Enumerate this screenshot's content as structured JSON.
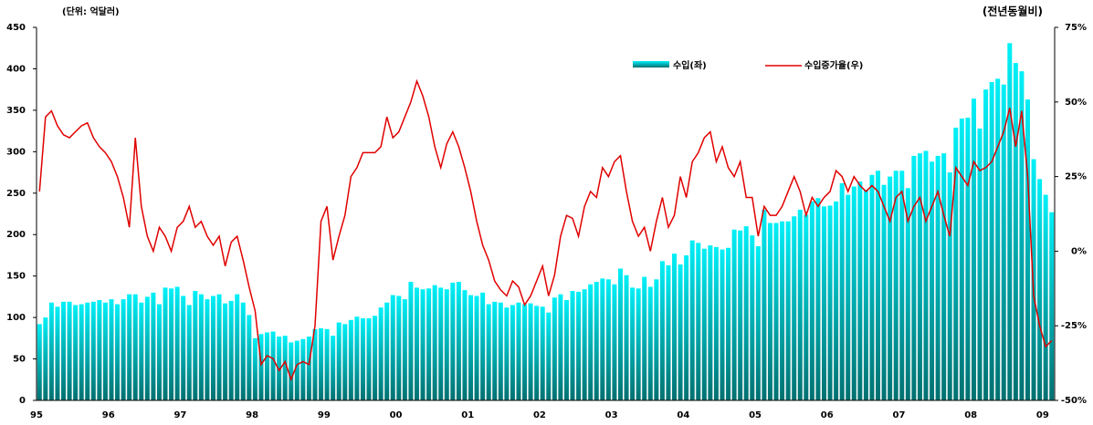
{
  "chart_data": {
    "type": "bar_line",
    "unit_label": "(단위: 억달러)",
    "y2_label": "(전년동월비)",
    "categories": [
      "95",
      null,
      null,
      null,
      null,
      null,
      null,
      null,
      null,
      null,
      null,
      null,
      "96",
      null,
      null,
      null,
      null,
      null,
      null,
      null,
      null,
      null,
      null,
      null,
      "97",
      null,
      null,
      null,
      null,
      null,
      null,
      null,
      null,
      null,
      null,
      null,
      "98",
      null,
      null,
      null,
      null,
      null,
      null,
      null,
      null,
      null,
      null,
      null,
      "99",
      null,
      null,
      null,
      null,
      null,
      null,
      null,
      null,
      null,
      null,
      null,
      "00",
      null,
      null,
      null,
      null,
      null,
      null,
      null,
      null,
      null,
      null,
      null,
      "01",
      null,
      null,
      null,
      null,
      null,
      null,
      null,
      null,
      null,
      null,
      null,
      "02",
      null,
      null,
      null,
      null,
      null,
      null,
      null,
      null,
      null,
      null,
      null,
      "03",
      null,
      null,
      null,
      null,
      null,
      null,
      null,
      null,
      null,
      null,
      null,
      "04",
      null,
      null,
      null,
      null,
      null,
      null,
      null,
      null,
      null,
      null,
      null,
      "05",
      null,
      null,
      null,
      null,
      null,
      null,
      null,
      null,
      null,
      null,
      null,
      "06",
      null,
      null,
      null,
      null,
      null,
      null,
      null,
      null,
      null,
      null,
      null,
      "07",
      null,
      null,
      null,
      null,
      null,
      null,
      null,
      null,
      null,
      null,
      null,
      "08",
      null,
      null,
      null,
      null,
      null,
      null,
      null,
      null,
      null,
      null,
      null,
      "09",
      null
    ],
    "series": [
      {
        "name": "수입(좌)",
        "color": "#00f0f8",
        "values": [
          92,
          100,
          118,
          113,
          119,
          119,
          115,
          116,
          118,
          119,
          121,
          118,
          122,
          116,
          122,
          128,
          128,
          118,
          125,
          130,
          116,
          136,
          135,
          137,
          126,
          115,
          132,
          128,
          122,
          126,
          128,
          117,
          120,
          128,
          118,
          103,
          75,
          80,
          82,
          83,
          77,
          78,
          70,
          72,
          74,
          77,
          86,
          87,
          86,
          78,
          94,
          92,
          97,
          101,
          99,
          99,
          102,
          112,
          118,
          127,
          126,
          122,
          143,
          136,
          134,
          135,
          139,
          136,
          134,
          142,
          143,
          133,
          127,
          126,
          130,
          116,
          119,
          118,
          112,
          115,
          118,
          116,
          117,
          114,
          113,
          106,
          124,
          128,
          121,
          132,
          131,
          134,
          140,
          143,
          147,
          146,
          140,
          159,
          151,
          136,
          135,
          149,
          137,
          146,
          168,
          163,
          177,
          164,
          175,
          193,
          190,
          183,
          187,
          185,
          182,
          184,
          206,
          205,
          210,
          199,
          186,
          230,
          214,
          214,
          216,
          216,
          222,
          230,
          224,
          240,
          244,
          234,
          235,
          240,
          262,
          248,
          258,
          264,
          254,
          272,
          277,
          260,
          270,
          277,
          277,
          256,
          295,
          298,
          301,
          288,
          295,
          298,
          275,
          329,
          340,
          341,
          364,
          328,
          375,
          384,
          388,
          381,
          431,
          407,
          397,
          363,
          291,
          267,
          248,
          227
        ]
      },
      {
        "name": "수입증가율(우)",
        "color": "#e00000",
        "axis": "y2",
        "values": [
          20,
          45,
          47,
          42,
          39,
          38,
          40,
          42,
          43,
          38,
          35,
          33,
          30,
          25,
          18,
          8,
          38,
          15,
          5,
          0,
          8,
          5,
          0,
          8,
          10,
          15,
          8,
          10,
          5,
          2,
          5,
          -5,
          3,
          5,
          -3,
          -12,
          -20,
          -38,
          -35,
          -36,
          -40,
          -37,
          -43,
          -38,
          -37,
          -38,
          -25,
          10,
          15,
          -3,
          5,
          12,
          25,
          28,
          33,
          33,
          33,
          35,
          45,
          38,
          40,
          45,
          50,
          57,
          52,
          45,
          35,
          28,
          36,
          40,
          35,
          28,
          20,
          10,
          2,
          -3,
          -10,
          -13,
          -15,
          -10,
          -12,
          -18,
          -15,
          -10,
          -5,
          -15,
          -8,
          5,
          12,
          11,
          5,
          15,
          20,
          18,
          28,
          25,
          30,
          32,
          20,
          10,
          5,
          8,
          0,
          10,
          18,
          8,
          12,
          25,
          18,
          30,
          33,
          38,
          40,
          30,
          35,
          28,
          25,
          30,
          18,
          18,
          5,
          15,
          12,
          12,
          15,
          20,
          25,
          20,
          12,
          18,
          15,
          18,
          20,
          27,
          25,
          20,
          25,
          22,
          20,
          22,
          20,
          15,
          10,
          18,
          20,
          10,
          15,
          18,
          10,
          15,
          20,
          12,
          5,
          28,
          25,
          22,
          30,
          27,
          28,
          30,
          35,
          40,
          48,
          35,
          47,
          25,
          -15,
          -25,
          -32,
          -30
        ]
      }
    ],
    "ylim": [
      0,
      450
    ],
    "yticks": [
      0,
      50,
      100,
      150,
      200,
      250,
      300,
      350,
      400,
      450
    ],
    "y2lim": [
      -50,
      75
    ],
    "y2ticks": [
      {
        "value": 75,
        "label": "75%"
      },
      {
        "value": 50,
        "label": "50%"
      },
      {
        "value": 25,
        "label": "25%"
      },
      {
        "value": 0,
        "label": "0%"
      },
      {
        "value": -25,
        "label": "-25%"
      },
      {
        "value": -50,
        "label": "-50%"
      }
    ]
  }
}
